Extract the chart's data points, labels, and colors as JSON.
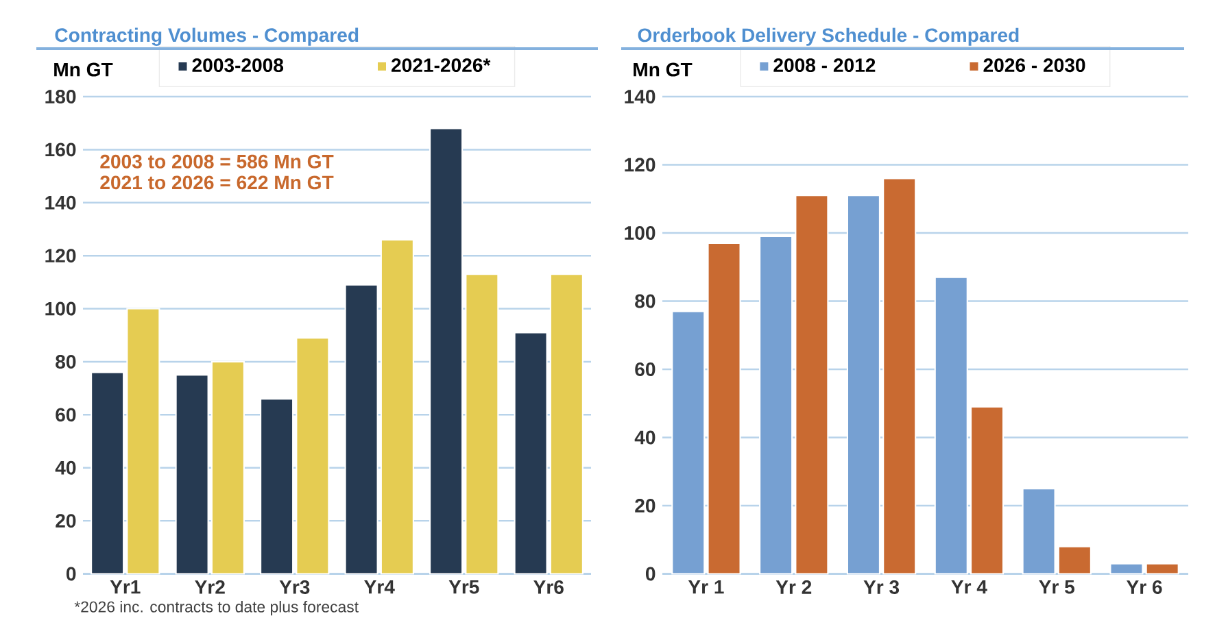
{
  "chart_data": [
    {
      "type": "bar",
      "title": "Contracting Volumes - Compared",
      "ylabel": "Mn GT",
      "categories": [
        "Yr1",
        "Yr2",
        "Yr3",
        "Yr4",
        "Yr5",
        "Yr6"
      ],
      "series": [
        {
          "name": "2003-2008",
          "color": "#263a52",
          "values": [
            76,
            75,
            66,
            109,
            168,
            91
          ]
        },
        {
          "name": "2021-2026*",
          "color": "#e5cc52",
          "values": [
            100,
            80,
            89,
            126,
            113,
            113
          ]
        }
      ],
      "ylim": [
        0,
        180
      ],
      "yticks": [
        0,
        20,
        40,
        60,
        80,
        100,
        120,
        140,
        160,
        180
      ],
      "grid": "y",
      "legend": "top",
      "annotations": [
        "2003 to 2008 = 586 Mn GT",
        "2021 to 2026 = 622 Mn GT",
        "*2026 inc. contracts to date plus forecast"
      ]
    },
    {
      "type": "bar",
      "title": "Orderbook Delivery Schedule - Compared",
      "ylabel": "Mn GT",
      "categories": [
        "Yr 1",
        "Yr 2",
        "Yr 3",
        "Yr 4",
        "Yr 5",
        "Yr 6"
      ],
      "series": [
        {
          "name": "2008 - 2012",
          "color": "#76a0d2",
          "values": [
            77,
            99,
            111,
            87,
            25,
            3
          ]
        },
        {
          "name": "2026 - 2030",
          "color": "#c96a31",
          "values": [
            97,
            111,
            116,
            49,
            8,
            3
          ]
        }
      ],
      "ylim": [
        0,
        140
      ],
      "yticks": [
        0,
        20,
        40,
        60,
        80,
        100,
        120,
        140
      ],
      "grid": "y",
      "legend": "top"
    }
  ]
}
